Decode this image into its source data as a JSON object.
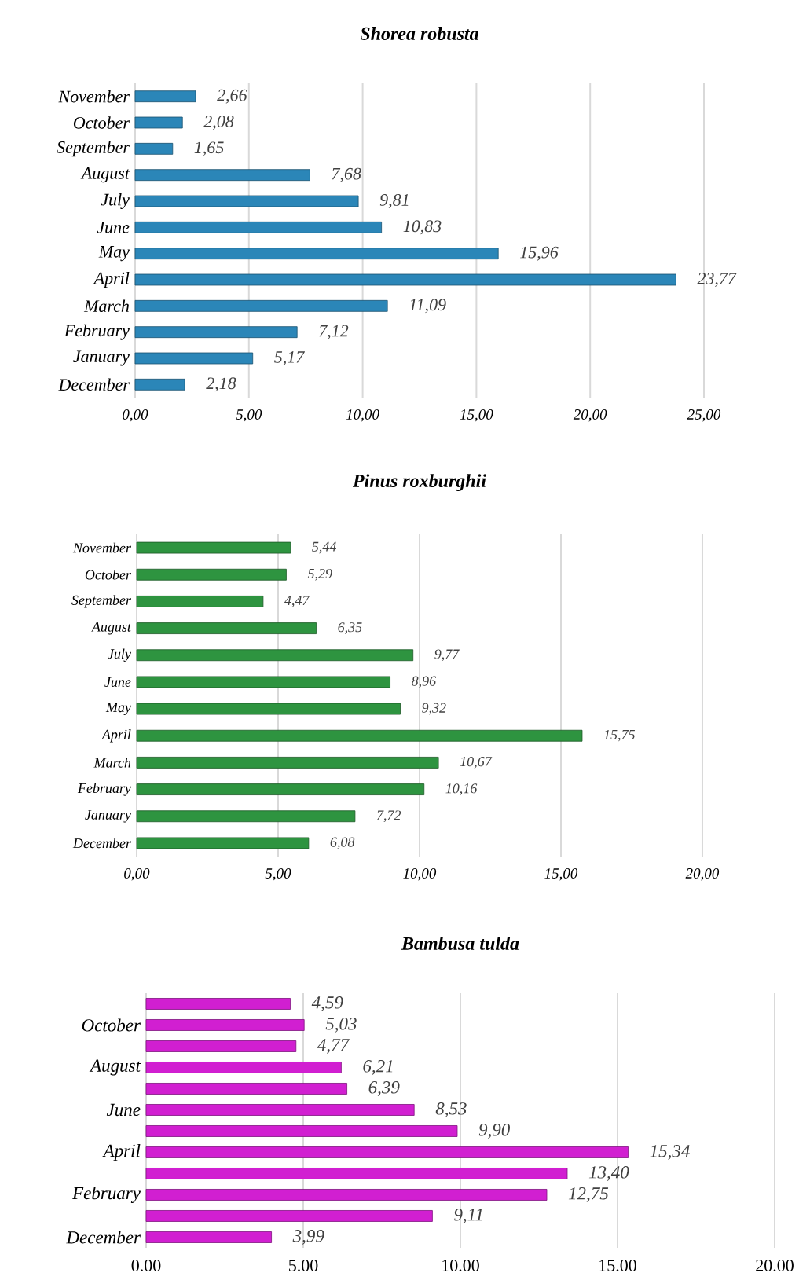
{
  "chart_data": [
    {
      "type": "bar",
      "orientation": "horizontal",
      "title": "Shorea robusta",
      "grid": "x",
      "color": "#2b86b8",
      "categories": [
        "November",
        "October",
        "September",
        "August",
        "July",
        "June",
        "May",
        "April",
        "March",
        "February",
        "January",
        "December"
      ],
      "values": [
        2.66,
        2.08,
        1.65,
        7.68,
        9.81,
        10.83,
        15.96,
        23.77,
        11.09,
        7.12,
        5.17,
        2.18
      ],
      "value_labels": [
        "2,66",
        "2,08",
        "1,65",
        "7,68",
        "9,81",
        "10,83",
        "15,96",
        "23,77",
        "11,09",
        "7,12",
        "5,17",
        "2,18"
      ],
      "xlim": [
        0,
        25
      ],
      "xticks": [
        {
          "value": 0,
          "label": "0,00"
        },
        {
          "value": 5,
          "label": "5,00"
        },
        {
          "value": 10,
          "label": "10,00"
        },
        {
          "value": 15,
          "label": "15,00"
        },
        {
          "value": 20,
          "label": "20,00"
        },
        {
          "value": 25,
          "label": "25,00"
        }
      ]
    },
    {
      "type": "bar",
      "orientation": "horizontal",
      "title": "Pinus roxburghii",
      "grid": "x",
      "color": "#2e9440",
      "categories": [
        "November",
        "October",
        "September",
        "August",
        "July",
        "June",
        "May",
        "April",
        "March",
        "February",
        "January",
        "December"
      ],
      "values": [
        5.44,
        5.29,
        4.47,
        6.35,
        9.77,
        8.96,
        9.32,
        15.75,
        10.67,
        10.16,
        7.72,
        6.08
      ],
      "value_labels": [
        "5,44",
        "5,29",
        "4,47",
        "6,35",
        "9,77",
        "8,96",
        "9,32",
        "15,75",
        "10,67",
        "10,16",
        "7,72",
        "6,08"
      ],
      "xlim": [
        0,
        20
      ],
      "xticks": [
        {
          "value": 0,
          "label": "0,00"
        },
        {
          "value": 5,
          "label": "5,00"
        },
        {
          "value": 10,
          "label": "10,00"
        },
        {
          "value": 15,
          "label": "15,00"
        },
        {
          "value": 20,
          "label": "20,00"
        }
      ]
    },
    {
      "type": "bar",
      "orientation": "horizontal",
      "title": "Bambusa tulda",
      "grid": "x",
      "color": "#d11fd1",
      "categories": [
        null,
        "October",
        null,
        "August",
        null,
        "June",
        null,
        "April",
        null,
        "February",
        null,
        "December"
      ],
      "values": [
        4.59,
        5.03,
        4.77,
        6.21,
        6.39,
        8.53,
        9.9,
        15.34,
        13.4,
        12.75,
        9.11,
        3.99
      ],
      "value_labels": [
        "4,59",
        "5,03",
        "4,77",
        "6,21",
        "6,39",
        "8,53",
        "9,90",
        "15,34",
        "13,40",
        "12,75",
        "9,11",
        "3,99"
      ],
      "xlim": [
        0,
        20
      ],
      "xticks": [
        {
          "value": 0,
          "label": "0.00"
        },
        {
          "value": 5,
          "label": "5.00"
        },
        {
          "value": 10,
          "label": "10.00"
        },
        {
          "value": 15,
          "label": "15.00"
        },
        {
          "value": 20,
          "label": "20.00"
        }
      ]
    }
  ]
}
